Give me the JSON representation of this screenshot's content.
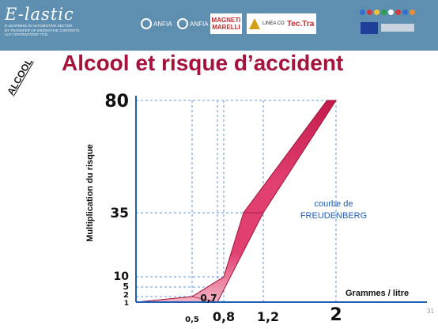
{
  "header": {
    "brand_name": "E-lastic",
    "brand_lines": [
      "E-LEARNING IN AUTOMOTIVE SECTOR",
      "BY TRANSFER OF INNOVATIVE CONTENTS",
      "LLP CONTENT/2007-IT/11"
    ],
    "partners": [
      "ANFIA",
      "ANFIA",
      "MAGNETI MARELLI",
      "LINEA CONTINO",
      "Tec.Tra"
    ],
    "colors": {
      "bar": "#5e8fb0"
    }
  },
  "slide": {
    "title": "Alcool et risque d’accident",
    "section_label": "ALCOOL",
    "curve_label": [
      "courbe de",
      "FREUDENBERG"
    ],
    "page_number": "31"
  },
  "chart_data": {
    "type": "area",
    "xlabel": "Grammes / litre",
    "ylabel": "Multiplication du risque",
    "series_name": "courbe de FREUDENBERG",
    "x_ticks": [
      {
        "label": "0,5",
        "value": 0.5
      },
      {
        "label": "0,7",
        "value": 0.7
      },
      {
        "label": "0,8",
        "value": 0.8
      },
      {
        "label": "1,2",
        "value": 1.2
      },
      {
        "label": "2",
        "value": 2
      }
    ],
    "y_ticks": [
      {
        "label": "1",
        "value": 1
      },
      {
        "label": "2",
        "value": 2
      },
      {
        "label": "5",
        "value": 5
      },
      {
        "label": "10",
        "value": 10
      },
      {
        "label": "35",
        "value": 35
      },
      {
        "label": "80",
        "value": 80
      }
    ],
    "band_lower": [
      [
        0.4,
        1
      ],
      [
        0.7,
        1
      ],
      [
        1.2,
        35
      ],
      [
        2,
        80
      ]
    ],
    "band_upper": [
      [
        0.4,
        1
      ],
      [
        0.5,
        2
      ],
      [
        0.8,
        10
      ],
      [
        1.0,
        35
      ],
      [
        1.9,
        80
      ]
    ],
    "guides_vertical": [
      0.5,
      0.7,
      0.8,
      1.2,
      2
    ],
    "guides_horizontal": [
      2,
      5,
      10,
      35,
      80
    ],
    "colors": {
      "band": "#e03f6f",
      "band_dark": "#c31c4c",
      "band_light": "#f3b3c4",
      "axis": "#1f5fb8",
      "guide": "#3a78c9"
    }
  }
}
